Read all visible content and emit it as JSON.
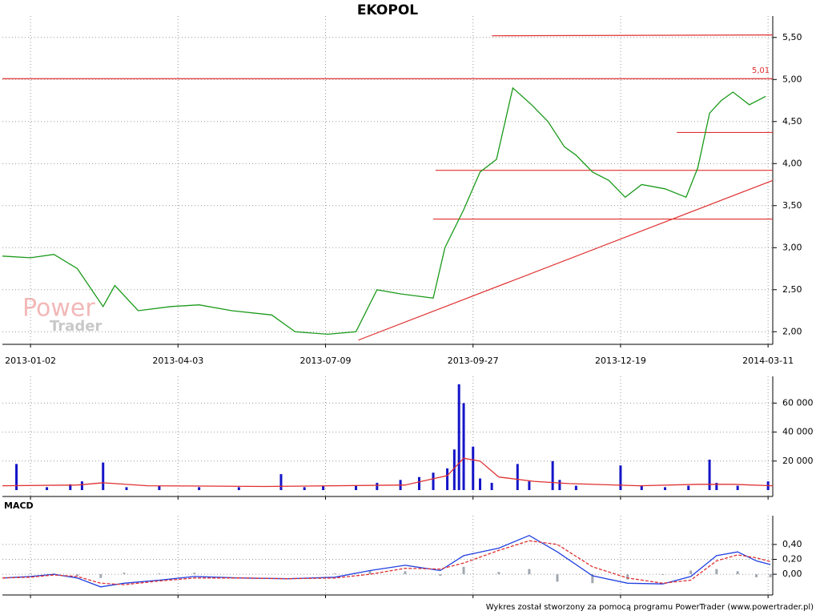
{
  "footer": "Wykres został stworzony za pomocą programu PowerTrader (www.powertrader.pl)",
  "chart_data": [
    {
      "type": "line",
      "title": "EKOPOL",
      "watermark": [
        "Power",
        "Trader"
      ],
      "annotation": {
        "value": 5.01,
        "label": "5,01"
      },
      "x": [
        -12,
        0,
        10,
        20,
        31,
        36,
        46,
        60,
        72,
        86,
        103,
        113,
        127,
        139,
        148,
        158,
        172,
        177,
        185,
        192,
        199,
        206,
        214,
        221,
        228,
        233,
        240,
        247,
        254,
        261,
        271,
        280,
        285,
        290,
        295,
        300,
        307,
        314
      ],
      "series": [
        {
          "type": "line",
          "color": "#1a9a1a",
          "values": [
            2.9,
            2.88,
            2.92,
            2.75,
            2.3,
            2.55,
            2.25,
            2.3,
            2.32,
            2.25,
            2.2,
            2.0,
            1.97,
            2.0,
            2.5,
            2.45,
            2.4,
            3.0,
            3.45,
            3.9,
            4.05,
            4.9,
            4.7,
            4.5,
            4.2,
            4.1,
            3.9,
            3.8,
            3.6,
            3.75,
            3.7,
            3.6,
            3.95,
            4.6,
            4.75,
            4.85,
            4.7,
            4.8
          ]
        }
      ],
      "levels": [
        {
          "x": [
            197,
            317
          ],
          "y": [
            5.52,
            5.53
          ]
        },
        {
          "x": [
            -12,
            317
          ],
          "y": [
            5.01,
            5.01
          ]
        },
        {
          "x": [
            173,
            317
          ],
          "y": [
            3.92,
            3.92
          ]
        },
        {
          "x": [
            276,
            317
          ],
          "y": [
            4.37,
            4.37
          ]
        },
        {
          "x": [
            172,
            317
          ],
          "y": [
            3.34,
            3.34
          ]
        },
        {
          "x": [
            140,
            317
          ],
          "y": [
            1.9,
            3.8
          ]
        }
      ],
      "level_color": "#e03030",
      "xlim": [
        -12,
        317
      ],
      "xticks": [
        {
          "value": 0,
          "label": "2013-01-02"
        },
        {
          "value": 63,
          "label": "2013-04-03"
        },
        {
          "value": 126,
          "label": "2013-07-09"
        },
        {
          "value": 189,
          "label": "2013-09-27"
        },
        {
          "value": 252,
          "label": "2013-12-19"
        },
        {
          "value": 315,
          "label": "2014-03-11"
        }
      ],
      "ylim": [
        1.85,
        5.66
      ],
      "yticks": [
        {
          "value": 2,
          "label": "2,00"
        },
        {
          "value": 2.5,
          "label": "2,50"
        },
        {
          "value": 3,
          "label": "3,00"
        },
        {
          "value": 3.5,
          "label": "3,50"
        },
        {
          "value": 4,
          "label": "4,00"
        },
        {
          "value": 4.5,
          "label": "4,50"
        },
        {
          "value": 5,
          "label": "5,00"
        },
        {
          "value": 5.5,
          "label": "5,50"
        }
      ],
      "grid": true
    },
    {
      "type": "bar",
      "series": [
        {
          "type": "bar",
          "color": "#1414c8",
          "x": [
            -6,
            7,
            17,
            22,
            31,
            41,
            55,
            72,
            89,
            107,
            117,
            125,
            139,
            148,
            158,
            166,
            172,
            178,
            181,
            183,
            185,
            189,
            192,
            197,
            208,
            213,
            223,
            226,
            233,
            252,
            261,
            271,
            281,
            290,
            293,
            302,
            315
          ],
          "values": [
            18000,
            2000,
            4000,
            6000,
            19000,
            2000,
            3000,
            2000,
            2000,
            11000,
            2000,
            3000,
            3000,
            5000,
            7000,
            9000,
            12000,
            15000,
            28000,
            73000,
            60000,
            30000,
            8000,
            5000,
            18000,
            6000,
            20000,
            7000,
            3000,
            17000,
            3000,
            2000,
            3000,
            21000,
            5000,
            3000,
            6000
          ]
        },
        {
          "type": "line",
          "color": "#e03030",
          "x": [
            -12,
            20,
            31,
            50,
            100,
            160,
            178,
            185,
            192,
            200,
            215,
            230,
            260,
            285,
            300,
            317
          ],
          "values": [
            3000,
            3500,
            5000,
            3000,
            2500,
            3500,
            10000,
            22000,
            20000,
            9000,
            6000,
            4500,
            3000,
            4000,
            4000,
            3000
          ]
        }
      ],
      "xlim": [
        -12,
        317
      ],
      "xticks": [
        0,
        63,
        126,
        189,
        252,
        315
      ],
      "ylim": [
        0,
        74000
      ],
      "yticks": [
        {
          "value": 20000,
          "label": "20 000"
        },
        {
          "value": 40000,
          "label": "40 000"
        },
        {
          "value": 60000,
          "label": "60 000"
        }
      ],
      "grid": true
    },
    {
      "type": "line",
      "title": "MACD",
      "x": [
        -12,
        0,
        10,
        20,
        30,
        40,
        55,
        70,
        90,
        110,
        130,
        145,
        160,
        175,
        185,
        200,
        213,
        225,
        240,
        255,
        270,
        282,
        293,
        302,
        310,
        316
      ],
      "series": [
        {
          "type": "bar",
          "color": "#a0a8b0",
          "values": [
            0,
            0.01,
            0.01,
            -0.02,
            -0.05,
            0.02,
            0.01,
            0.02,
            0,
            0,
            0.01,
            0.05,
            0.04,
            -0.02,
            0.1,
            0.03,
            0.07,
            -0.1,
            -0.12,
            -0.07,
            -0.01,
            0.05,
            0.07,
            0.04,
            -0.04,
            -0.04
          ]
        },
        {
          "type": "line",
          "color": "#2040e0",
          "values": [
            -0.05,
            -0.03,
            0,
            -0.05,
            -0.17,
            -0.12,
            -0.08,
            -0.03,
            -0.05,
            -0.06,
            -0.04,
            0.05,
            0.12,
            0.05,
            0.25,
            0.35,
            0.52,
            0.3,
            -0.02,
            -0.12,
            -0.13,
            -0.03,
            0.25,
            0.3,
            0.18,
            0.13
          ]
        },
        {
          "type": "line",
          "color": "#e03030",
          "dash": true,
          "values": [
            -0.05,
            -0.04,
            -0.01,
            -0.03,
            -0.12,
            -0.14,
            -0.09,
            -0.05,
            -0.05,
            -0.06,
            -0.05,
            0,
            0.08,
            0.07,
            0.15,
            0.32,
            0.45,
            0.4,
            0.1,
            -0.05,
            -0.12,
            -0.08,
            0.18,
            0.26,
            0.22,
            0.17
          ]
        }
      ],
      "xlim": [
        -12,
        317
      ],
      "xticks": [
        0,
        63,
        126,
        189,
        252,
        315
      ],
      "ylim": [
        -0.3,
        0.7
      ],
      "yticks": [
        {
          "value": 0,
          "label": "0,00"
        },
        {
          "value": 0.2,
          "label": "0,20"
        },
        {
          "value": 0.4,
          "label": "0,40"
        }
      ],
      "grid": true
    }
  ]
}
